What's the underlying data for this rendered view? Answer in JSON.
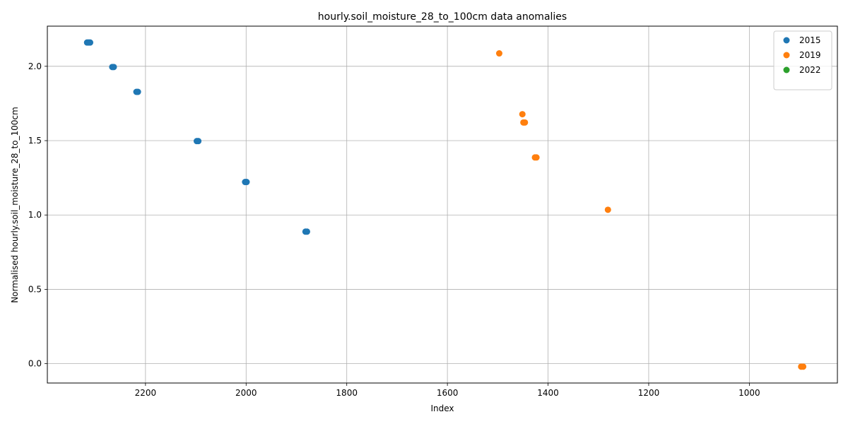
{
  "chart_data": {
    "type": "scatter",
    "title": "hourly.soil_moisture_28_to_100cm data anomalies",
    "xlabel": "Index",
    "ylabel": "Normalised hourly.soil_moisture_28_to_100cm",
    "xlim": [
      2395,
      825
    ],
    "ylim": [
      -0.13,
      2.27
    ],
    "x_inverted": true,
    "xticks": [
      2200,
      2000,
      1800,
      1600,
      1400,
      1200,
      1000
    ],
    "yticks": [
      0.0,
      0.5,
      1.0,
      1.5,
      2.0
    ],
    "ytick_labels": [
      "0.0",
      "0.5",
      "1.0",
      "1.5",
      "2.0"
    ],
    "grid": true,
    "legend_position": "top-right",
    "series": [
      {
        "name": "2015",
        "color": "#1f77b4",
        "points": [
          {
            "x": 2316,
            "y": 2.16
          },
          {
            "x": 2313,
            "y": 2.16
          },
          {
            "x": 2310,
            "y": 2.16
          },
          {
            "x": 2266,
            "y": 1.995
          },
          {
            "x": 2263,
            "y": 1.995
          },
          {
            "x": 2218,
            "y": 1.828
          },
          {
            "x": 2215,
            "y": 1.828
          },
          {
            "x": 2098,
            "y": 1.497
          },
          {
            "x": 2095,
            "y": 1.497
          },
          {
            "x": 2002,
            "y": 1.222
          },
          {
            "x": 1999,
            "y": 1.222
          },
          {
            "x": 1882,
            "y": 0.888
          },
          {
            "x": 1879,
            "y": 0.888
          }
        ]
      },
      {
        "name": "2019",
        "color": "#ff7f0e",
        "points": [
          {
            "x": 1497,
            "y": 2.087
          },
          {
            "x": 1451,
            "y": 1.678
          },
          {
            "x": 1449,
            "y": 1.622
          },
          {
            "x": 1446,
            "y": 1.622
          },
          {
            "x": 1426,
            "y": 1.387
          },
          {
            "x": 1423,
            "y": 1.387
          },
          {
            "x": 1281,
            "y": 1.035
          },
          {
            "x": 897,
            "y": -0.02
          },
          {
            "x": 893,
            "y": -0.02
          }
        ]
      },
      {
        "name": "2022",
        "color": "#2ca02c",
        "points": []
      }
    ]
  }
}
